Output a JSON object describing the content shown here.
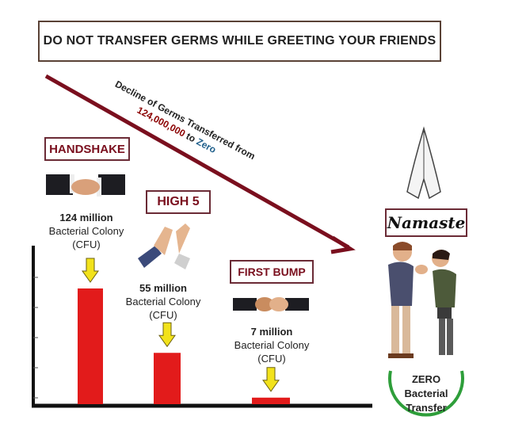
{
  "banner": {
    "title": "DO NOT TRANSFER  GERMS WHILE  GREETING  YOUR FRIENDS"
  },
  "decline": {
    "line1": "Decline of Germs Transferred from",
    "from_value": "124,000,000",
    "to_word": "to",
    "to_value": "Zero"
  },
  "labels": {
    "handshake": "HANDSHAKE",
    "high5": "HIGH 5",
    "fist_bump": "FIRST BUMP",
    "namaste": "Namaste"
  },
  "values": {
    "handshake": {
      "amount": "124 million",
      "line2": "Bacterial Colony",
      "line3": "(CFU)"
    },
    "high5": {
      "amount": "55 million",
      "line2": "Bacterial Colony",
      "line3": "(CFU)"
    },
    "fist_bump": {
      "amount": "7 million",
      "line2": "Bacterial Colony",
      "line3": "(CFU)"
    }
  },
  "zero": {
    "line1": "ZERO",
    "line2": "Bacterial",
    "line3": "Transfer"
  },
  "colors": {
    "bar": "#e21b1b",
    "arrow": "#f2e21b",
    "trend": "#7a0f1e",
    "circle": "#2e9e3a"
  },
  "chart_data": {
    "type": "bar",
    "categories": [
      "HANDSHAKE",
      "HIGH 5",
      "FIRST BUMP",
      "Namaste"
    ],
    "values": [
      124,
      55,
      7,
      0
    ],
    "unit": "million Bacterial Colony (CFU)"
  }
}
